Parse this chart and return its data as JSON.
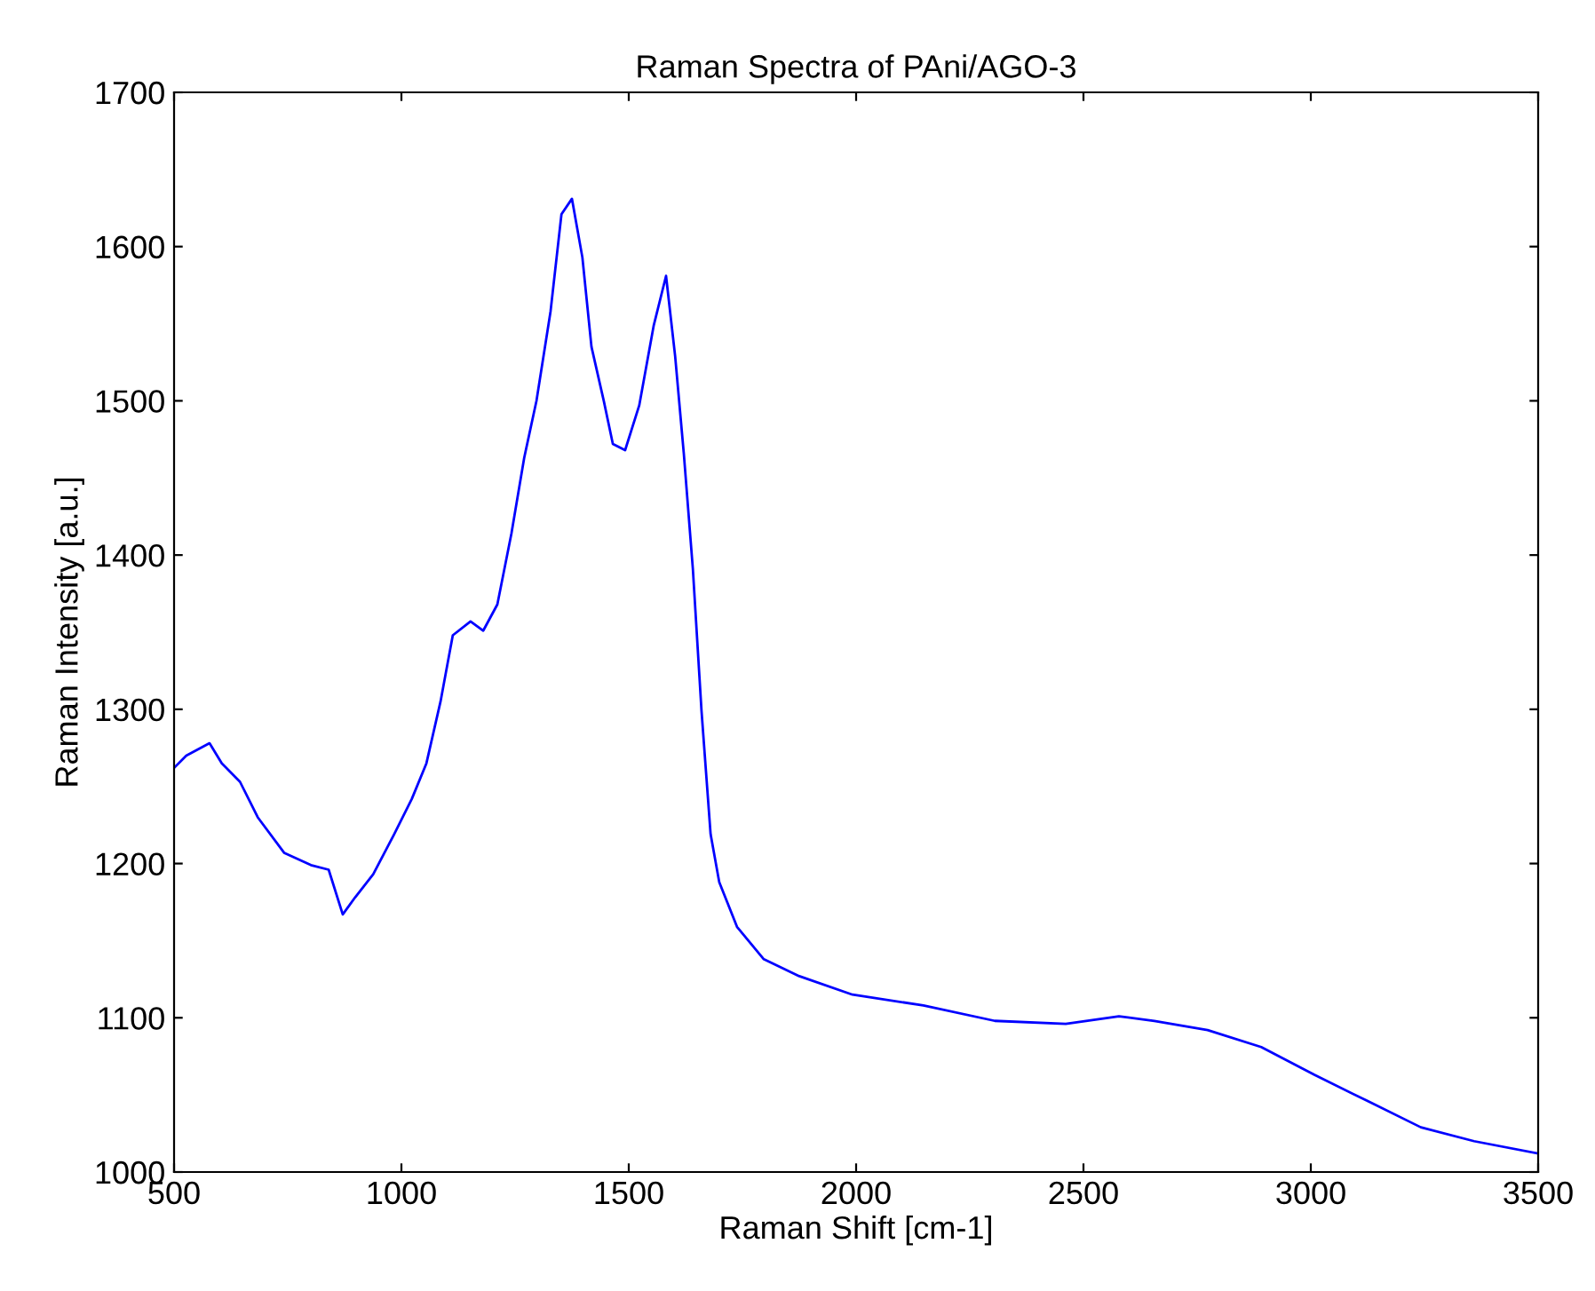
{
  "chart_data": {
    "type": "line",
    "title": "Raman Spectra of PAni/AGO-3",
    "xlabel": "Raman Shift [cm-1]",
    "ylabel": "Raman Intensity [a.u.]",
    "xlim": [
      500,
      3500
    ],
    "xticks": [
      500,
      1000,
      1500,
      2000,
      2500,
      3000,
      3500
    ],
    "ylim": [
      1000,
      1700
    ],
    "yticks": [
      1000,
      1100,
      1200,
      1300,
      1400,
      1500,
      1600,
      1700
    ],
    "grid": false,
    "marker": "none",
    "line_style": "solid",
    "series": [
      {
        "color": "#0000ff",
        "x": [
          500,
          527,
          578,
          605,
          645,
          684,
          742,
          801,
          840,
          871,
          898,
          938,
          984,
          1023,
          1055,
          1086,
          1113,
          1152,
          1180,
          1211,
          1242,
          1270,
          1297,
          1328,
          1352,
          1375,
          1398,
          1418,
          1445,
          1465,
          1492,
          1523,
          1555,
          1582,
          1602,
          1621,
          1641,
          1660,
          1680,
          1699,
          1738,
          1797,
          1875,
          1992,
          2148,
          2305,
          2461,
          2578,
          2656,
          2773,
          2891,
          3008,
          3125,
          3242,
          3359,
          3500
        ],
        "values": [
          1262,
          1270,
          1278,
          1265,
          1253,
          1230,
          1207,
          1199,
          1196,
          1167,
          1178,
          1193,
          1219,
          1242,
          1265,
          1305,
          1348,
          1357,
          1351,
          1368,
          1414,
          1463,
          1500,
          1558,
          1621,
          1631,
          1593,
          1535,
          1500,
          1472,
          1468,
          1497,
          1549,
          1581,
          1529,
          1466,
          1391,
          1299,
          1219,
          1188,
          1159,
          1138,
          1127,
          1115,
          1108,
          1098,
          1096,
          1101,
          1098,
          1092,
          1081,
          1063,
          1046,
          1029,
          1020,
          1012
        ]
      }
    ]
  }
}
